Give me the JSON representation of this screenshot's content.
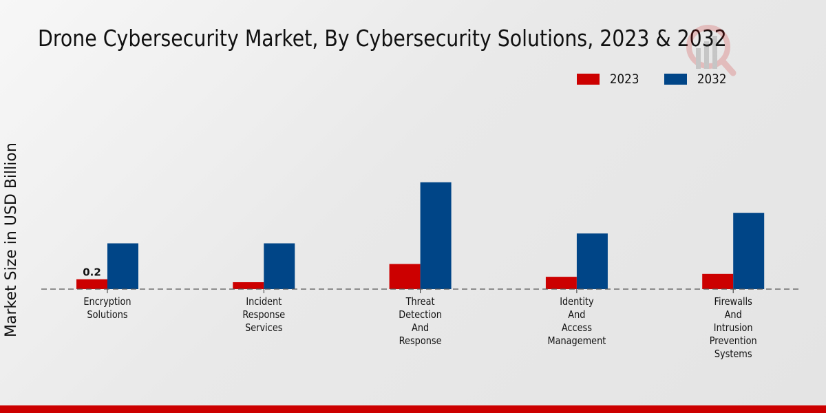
{
  "chart_data": {
    "type": "bar",
    "title": "Drone Cybersecurity Market, By Cybersecurity Solutions, 2023 & 2032",
    "xlabel": "",
    "ylabel": "Market Size in USD Billion",
    "categories": [
      "Encryption Solutions",
      "Incident Response Services",
      "Threat Detection And Response",
      "Identity And Access Management",
      "Firewalls And Intrusion Prevention Systems"
    ],
    "category_lines": [
      [
        "Encryption",
        "Solutions"
      ],
      [
        "Incident",
        "Response",
        "Services"
      ],
      [
        "Threat",
        "Detection",
        "And",
        "Response"
      ],
      [
        "Identity",
        "And",
        "Access",
        "Management"
      ],
      [
        "Firewalls",
        "And",
        "Intrusion",
        "Prevention",
        "Systems"
      ]
    ],
    "series": [
      {
        "name": "2023",
        "color": "#cc0000",
        "values": [
          0.2,
          0.14,
          0.51,
          0.25,
          0.31
        ]
      },
      {
        "name": "2032",
        "color": "#004587",
        "values": [
          0.93,
          0.93,
          2.17,
          1.13,
          1.55
        ]
      }
    ],
    "data_labels": [
      {
        "series": "2023",
        "category": "Encryption Solutions",
        "text": "0.2"
      }
    ],
    "legend_position": "top-right",
    "grid": false
  }
}
